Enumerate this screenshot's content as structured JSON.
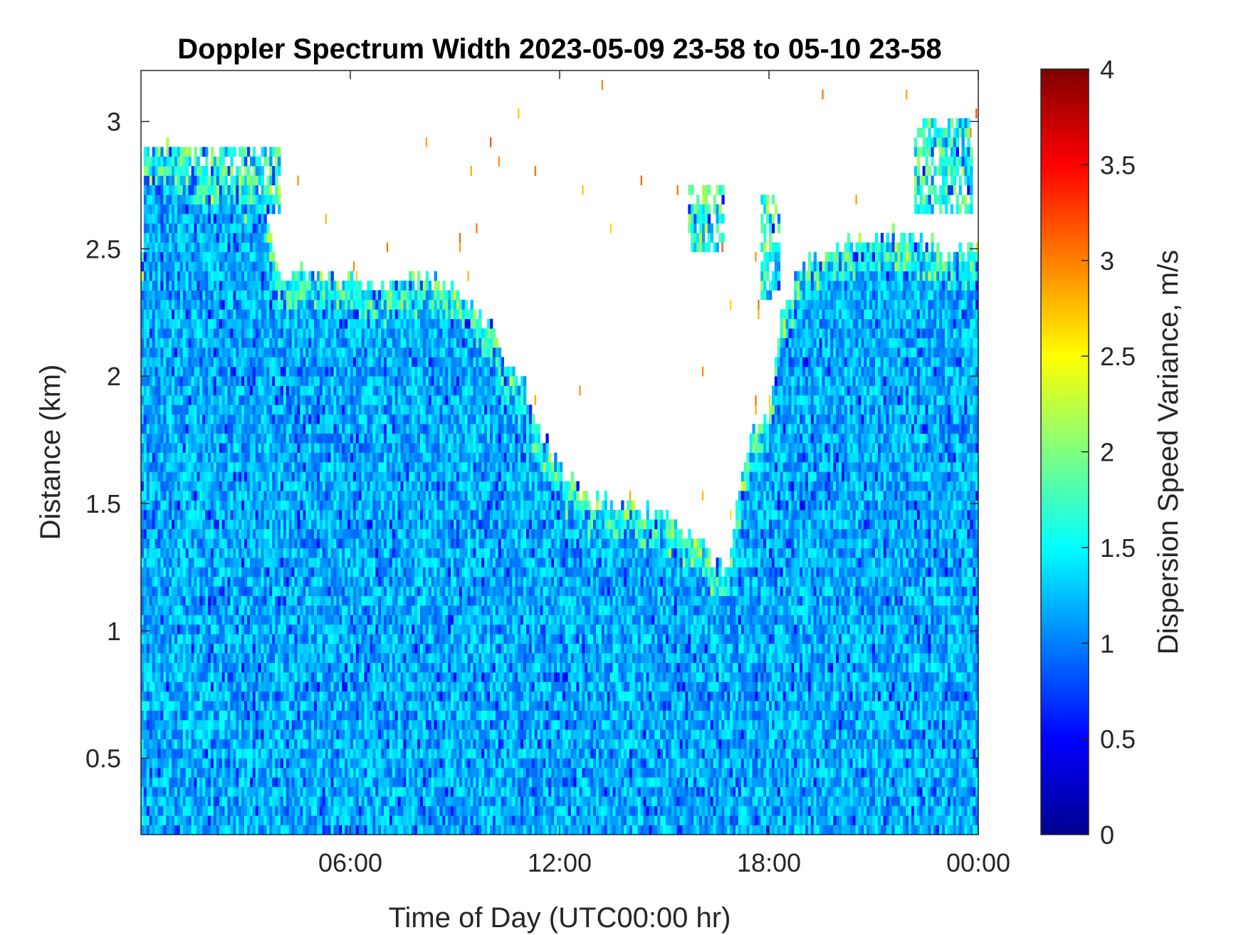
{
  "chart_data": {
    "type": "heatmap",
    "title": "Doppler Spectrum Width 2023-05-09 23-58 to 05-10 23-58",
    "xlabel": "Time of Day (UTC00:00 hr)",
    "ylabel": "Distance (km)",
    "colorbar_label": "Dispersion Speed Variance, m/s",
    "x_unit": "hours",
    "xlim": [
      0,
      24
    ],
    "ylim": [
      0.2,
      3.2
    ],
    "clim": [
      0,
      4
    ],
    "colormap": "jet",
    "x_ticks": [
      {
        "value": 6,
        "label": "06:00"
      },
      {
        "value": 12,
        "label": "12:00"
      },
      {
        "value": 18,
        "label": "18:00"
      },
      {
        "value": 24,
        "label": "00:00"
      }
    ],
    "y_ticks": [
      {
        "value": 0.5,
        "label": "0.5"
      },
      {
        "value": 1,
        "label": "1"
      },
      {
        "value": 1.5,
        "label": "1.5"
      },
      {
        "value": 2,
        "label": "2"
      },
      {
        "value": 2.5,
        "label": "2.5"
      },
      {
        "value": 3,
        "label": "3"
      }
    ],
    "colorbar_ticks": [
      {
        "value": 0,
        "label": "0"
      },
      {
        "value": 0.5,
        "label": "0.5"
      },
      {
        "value": 1,
        "label": "1"
      },
      {
        "value": 1.5,
        "label": "1.5"
      },
      {
        "value": 2,
        "label": "2"
      },
      {
        "value": 2.5,
        "label": "2.5"
      },
      {
        "value": 3,
        "label": "3"
      },
      {
        "value": 3.5,
        "label": "3.5"
      },
      {
        "value": 4,
        "label": "4"
      }
    ],
    "signal_top_km": [
      [
        0,
        2.2
      ],
      [
        0.1,
        2.9
      ],
      [
        0.6,
        2.9
      ],
      [
        1,
        2.85
      ],
      [
        2,
        2.8
      ],
      [
        3.5,
        2.75
      ],
      [
        4,
        2.4
      ],
      [
        5.5,
        2.4
      ],
      [
        7,
        2.35
      ],
      [
        8,
        2.4
      ],
      [
        9,
        2.35
      ],
      [
        10,
        2.2
      ],
      [
        10.5,
        2.05
      ],
      [
        11,
        1.95
      ],
      [
        11.5,
        1.75
      ],
      [
        12,
        1.65
      ],
      [
        12.5,
        1.55
      ],
      [
        13,
        1.5
      ],
      [
        14,
        1.5
      ],
      [
        15,
        1.45
      ],
      [
        15.5,
        1.4
      ],
      [
        16,
        1.35
      ],
      [
        16.5,
        1.25
      ],
      [
        16.8,
        1.2
      ],
      [
        17,
        1.4
      ],
      [
        17.3,
        1.7
      ],
      [
        17.6,
        1.8
      ],
      [
        18,
        1.85
      ],
      [
        18.3,
        2.2
      ],
      [
        19,
        2.45
      ],
      [
        20,
        2.5
      ],
      [
        21,
        2.55
      ],
      [
        22,
        2.55
      ],
      [
        23,
        2.5
      ],
      [
        24,
        2.5
      ]
    ],
    "cloud_patches": [
      {
        "x": [
          0.1,
          4.0
        ],
        "y": [
          2.62,
          2.9
        ]
      },
      {
        "x": [
          15.7,
          16.7
        ],
        "y": [
          2.5,
          2.75
        ]
      },
      {
        "x": [
          17.8,
          18.3
        ],
        "y": [
          2.3,
          2.7
        ]
      },
      {
        "x": [
          22.2,
          23.8
        ],
        "y": [
          2.65,
          3.0
        ]
      }
    ],
    "value_mean": 1.2
  }
}
